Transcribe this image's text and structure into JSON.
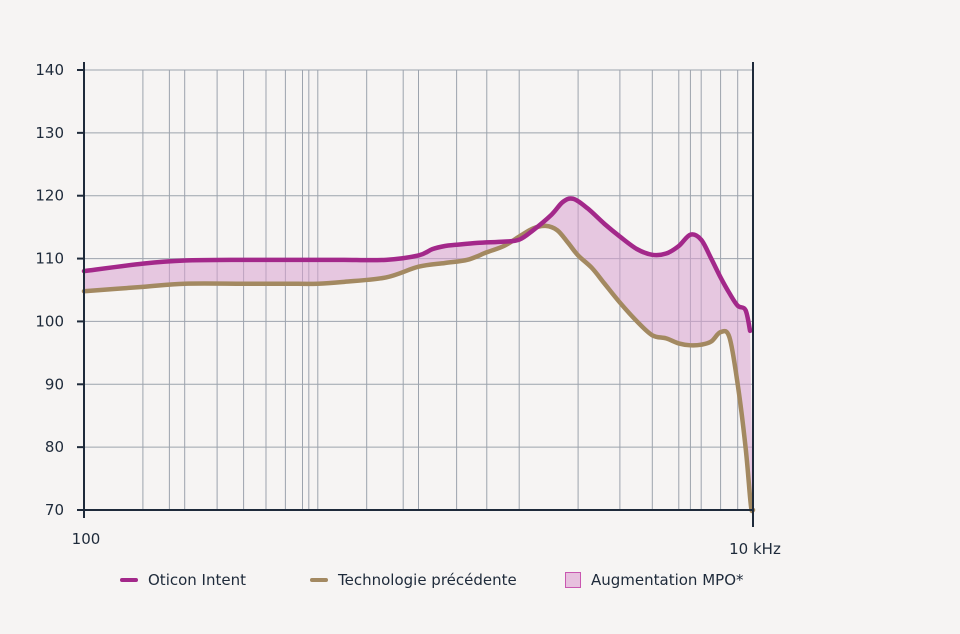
{
  "chart_data": {
    "type": "line",
    "x_scale": "log",
    "xlim": [
      100,
      10000
    ],
    "ylim": [
      70,
      140
    ],
    "yticks": [
      70,
      80,
      90,
      100,
      110,
      120,
      130,
      140
    ],
    "xtick_labels": [
      {
        "value": 100,
        "label": "100"
      },
      {
        "value": 10000,
        "label": "10 kHz"
      }
    ],
    "grid_x": [
      150,
      180,
      200,
      250,
      300,
      350,
      400,
      450,
      470,
      500,
      700,
      900,
      1000,
      1300,
      1600,
      2000,
      3000,
      4000,
      5000,
      6000,
      6500,
      7000,
      8000,
      9000
    ],
    "grid_y": true,
    "series": [
      {
        "name": "Oticon Intent",
        "color": "#a3288a",
        "x": [
          100,
          150,
          200,
          300,
          400,
          500,
          600,
          800,
          1000,
          1100,
          1200,
          1300,
          1500,
          1800,
          2000,
          2200,
          2500,
          2700,
          2900,
          3200,
          3600,
          4000,
          4500,
          5000,
          5500,
          6000,
          6500,
          7000,
          7500,
          8000,
          8500,
          9000,
          9500,
          9800
        ],
        "values": [
          108,
          109.2,
          109.7,
          109.8,
          109.8,
          109.8,
          109.8,
          109.8,
          110.5,
          111.5,
          112,
          112.2,
          112.5,
          112.7,
          113,
          114.5,
          117,
          119,
          119.5,
          118,
          115.5,
          113.5,
          111.5,
          110.6,
          110.8,
          112,
          113.8,
          113,
          110,
          107,
          104.5,
          102.5,
          101.8,
          98.5
        ]
      },
      {
        "name": "Technologie précédente",
        "color": "#a38961",
        "x": [
          100,
          150,
          200,
          300,
          400,
          500,
          600,
          800,
          1000,
          1200,
          1400,
          1600,
          1800,
          2000,
          2200,
          2400,
          2600,
          2800,
          3000,
          3300,
          3600,
          4000,
          4500,
          5000,
          5500,
          6000,
          6500,
          7000,
          7500,
          8000,
          8500,
          9000,
          9500,
          9800,
          9900,
          10000
        ],
        "values": [
          104.8,
          105.5,
          106,
          106,
          106,
          106,
          106.3,
          107,
          108.7,
          109.3,
          109.8,
          111,
          112,
          113.5,
          114.8,
          115.2,
          114.5,
          112.5,
          110.5,
          108.5,
          106,
          103,
          100,
          97.8,
          97.3,
          96.5,
          96.2,
          96.3,
          96.8,
          98.3,
          97.5,
          90,
          80,
          72,
          70,
          70
        ]
      }
    ],
    "fill_between": {
      "name": "Augmentation MPO*",
      "color": "#d9a3cf",
      "opacity": 0.55
    },
    "legend": [
      {
        "label": "Oticon Intent",
        "kind": "line",
        "color": "#a3288a"
      },
      {
        "label": "Technologie précédente",
        "kind": "line",
        "color": "#a38961"
      },
      {
        "label": "Augmentation MPO*",
        "kind": "area",
        "color": "#e7c0de",
        "border": "#c957b0"
      }
    ],
    "legend_position": "bottom",
    "colors": {
      "grid": "#9ca3ad",
      "axis": "#1e2a3a"
    }
  }
}
